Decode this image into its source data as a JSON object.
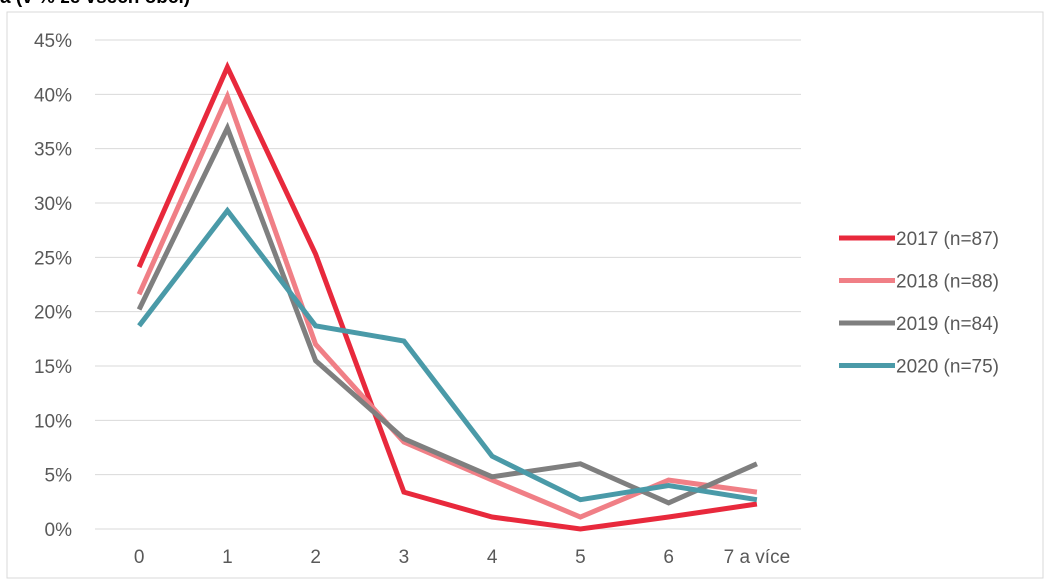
{
  "chart_data": {
    "type": "line",
    "title": "",
    "title_fragment": "a (v % ze všech obcí)",
    "xlabel": "",
    "ylabel": "",
    "categories": [
      "0",
      "1",
      "2",
      "3",
      "4",
      "5",
      "6",
      "7 a více"
    ],
    "ylim": [
      0,
      45
    ],
    "yticks": [
      "0%",
      "5%",
      "10%",
      "15%",
      "20%",
      "25%",
      "30%",
      "35%",
      "40%",
      "45%"
    ],
    "ytick_values": [
      0,
      5,
      10,
      15,
      20,
      25,
      30,
      35,
      40,
      45
    ],
    "grid": true,
    "legend_position": "right",
    "series": [
      {
        "name": "2017 (n=87)",
        "color": "#e8293c",
        "values": [
          24.1,
          42.5,
          25.3,
          3.4,
          1.1,
          0.0,
          1.1,
          2.3
        ]
      },
      {
        "name": "2018 (n=88)",
        "color": "#f07f86",
        "values": [
          21.6,
          39.8,
          17.0,
          8.0,
          4.5,
          1.1,
          4.5,
          3.4
        ]
      },
      {
        "name": "2019 (n=84)",
        "color": "#7f7f7f",
        "values": [
          20.2,
          36.9,
          15.5,
          8.3,
          4.8,
          6.0,
          2.4,
          6.0
        ]
      },
      {
        "name": "2020 (n=75)",
        "color": "#4a9aa8",
        "values": [
          18.7,
          29.3,
          18.7,
          17.3,
          6.7,
          2.7,
          4.0,
          2.7
        ]
      }
    ]
  }
}
